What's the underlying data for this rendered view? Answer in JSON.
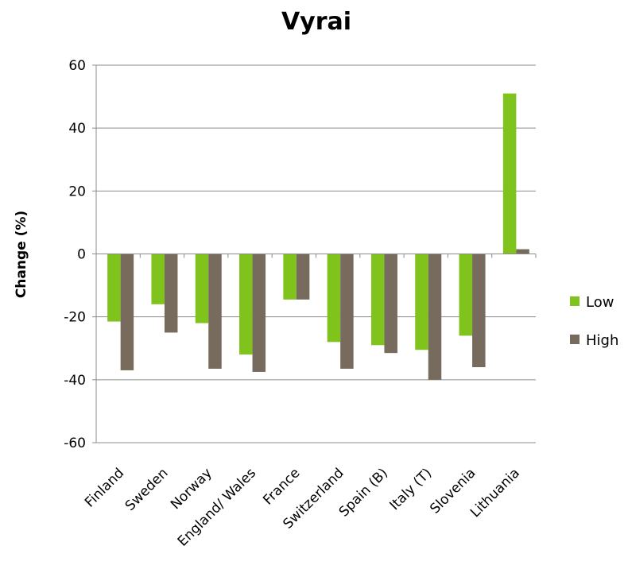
{
  "chart_data": {
    "type": "bar",
    "title": "Vyrai",
    "xlabel": "",
    "ylabel": "Change (%)",
    "ylim": [
      -60,
      60
    ],
    "yticks": [
      60,
      40,
      20,
      0,
      -20,
      -40,
      -60
    ],
    "grid": true,
    "legend_position": "right",
    "categories": [
      "Finland",
      "Sweden",
      "Norway",
      "England/ Wales",
      "France",
      "Switzerland",
      "Spain (B)",
      "Italy (T)",
      "Slovenia",
      "Lithuania"
    ],
    "series": [
      {
        "name": "Low",
        "color": "#7fc31c",
        "values": [
          -21.5,
          -16,
          -22,
          -32,
          -14.5,
          -28,
          -29,
          -30.5,
          -26,
          51
        ]
      },
      {
        "name": "High",
        "color": "#776b5d",
        "values": [
          -37,
          -25,
          -36.5,
          -37.5,
          -14.5,
          -36.5,
          -31.5,
          -40,
          -36,
          1.5
        ]
      }
    ]
  }
}
